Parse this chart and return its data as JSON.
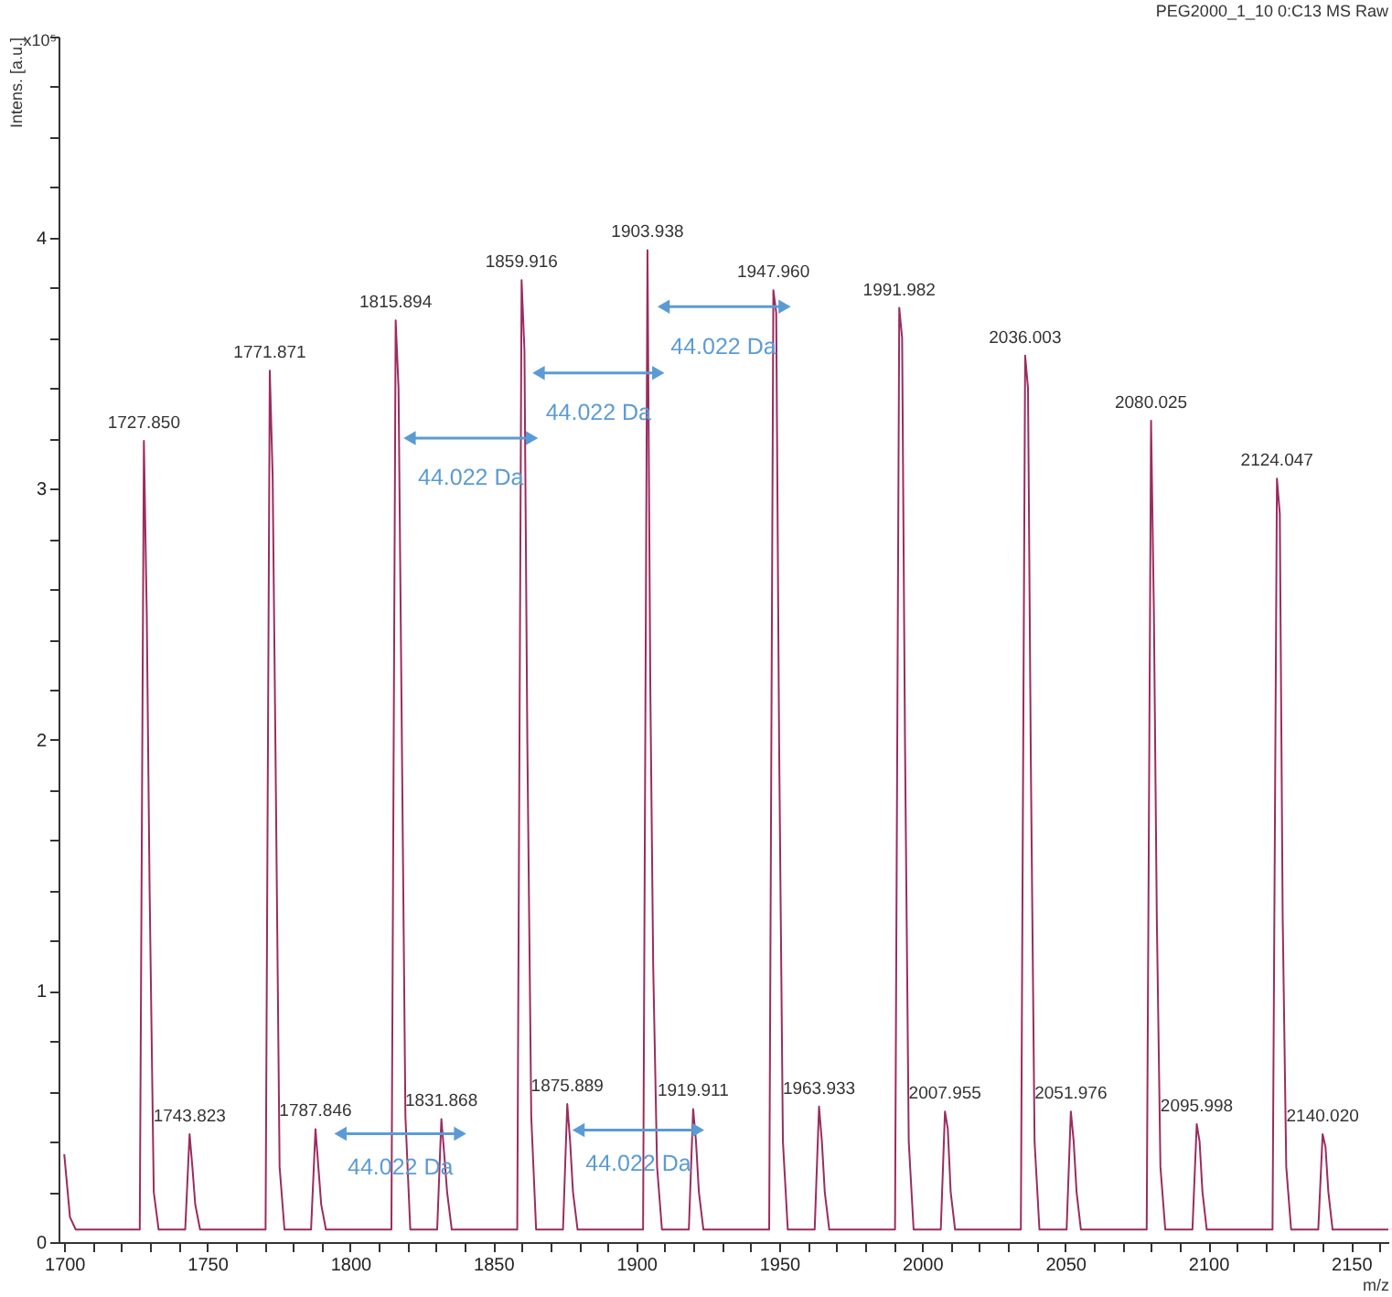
{
  "chart_data": {
    "type": "line",
    "title": "PEG2000_1_10 0:C13 MS Raw",
    "xlabel": "m/z",
    "ylabel": "Intens. [a.u.]",
    "xlim": [
      1698,
      2163
    ],
    "ylim": [
      0,
      4.8
    ],
    "xticks": [
      1700,
      {
        "value": 1710,
        "label": null
      },
      {
        "value": 1720,
        "label": null
      },
      {
        "value": 1730,
        "label": null
      },
      {
        "value": 1740,
        "label": null
      },
      1750,
      {
        "value": 1760,
        "label": null
      },
      {
        "value": 1770,
        "label": null
      },
      {
        "value": 1780,
        "label": null
      },
      {
        "value": 1790,
        "label": null
      },
      1800,
      {
        "value": 1810,
        "label": null
      },
      {
        "value": 1820,
        "label": null
      },
      {
        "value": 1830,
        "label": null
      },
      {
        "value": 1840,
        "label": null
      },
      1850,
      {
        "value": 1860,
        "label": null
      },
      {
        "value": 1870,
        "label": null
      },
      {
        "value": 1880,
        "label": null
      },
      {
        "value": 1890,
        "label": null
      },
      1900,
      {
        "value": 1910,
        "label": null
      },
      {
        "value": 1920,
        "label": null
      },
      {
        "value": 1930,
        "label": null
      },
      {
        "value": 1940,
        "label": null
      },
      1950,
      {
        "value": 1960,
        "label": null
      },
      {
        "value": 1970,
        "label": null
      },
      {
        "value": 1980,
        "label": null
      },
      {
        "value": 1990,
        "label": null
      },
      2000,
      {
        "value": 2010,
        "label": null
      },
      {
        "value": 2020,
        "label": null
      },
      {
        "value": 2030,
        "label": null
      },
      {
        "value": 2040,
        "label": null
      },
      2050,
      {
        "value": 2060,
        "label": null
      },
      {
        "value": 2070,
        "label": null
      },
      {
        "value": 2080,
        "label": null
      },
      {
        "value": 2090,
        "label": null
      },
      2100,
      {
        "value": 2110,
        "label": null
      },
      {
        "value": 2120,
        "label": null
      },
      {
        "value": 2130,
        "label": null
      },
      {
        "value": 2140,
        "label": null
      },
      2150,
      {
        "value": 2160,
        "label": null
      }
    ],
    "yticks": [
      0,
      {
        "value": 0.2,
        "label": null
      },
      {
        "value": 0.4,
        "label": null
      },
      {
        "value": 0.6,
        "label": null
      },
      {
        "value": 0.8,
        "label": null
      },
      1,
      {
        "value": 1.2,
        "label": null
      },
      {
        "value": 1.4,
        "label": null
      },
      {
        "value": 1.6,
        "label": null
      },
      {
        "value": 1.8,
        "label": null
      },
      2,
      {
        "value": 2.2,
        "label": null
      },
      {
        "value": 2.4,
        "label": null
      },
      {
        "value": 2.6,
        "label": null
      },
      {
        "value": 2.8,
        "label": null
      },
      3,
      {
        "value": 3.2,
        "label": null
      },
      {
        "value": 3.4,
        "label": null
      },
      {
        "value": 3.6,
        "label": null
      },
      {
        "value": 3.8,
        "label": null
      },
      4,
      {
        "value": 4.2,
        "label": null
      },
      {
        "value": 4.4,
        "label": null
      },
      {
        "value": 4.6,
        "label": null
      },
      {
        "value": 4.8,
        "label": null
      }
    ],
    "series": [
      {
        "color": "#9b2c5e",
        "x": [
          1700,
          1702,
          1704,
          1726.4,
          1727.85,
          1728.85,
          1729.85,
          1731.3,
          1733,
          1742.3,
          1743.82,
          1744.8,
          1745.8,
          1747.5,
          1770.4,
          1771.87,
          1772.87,
          1773.87,
          1775.3,
          1777,
          1786.3,
          1787.85,
          1788.85,
          1789.85,
          1791.5,
          1814.4,
          1815.89,
          1816.89,
          1817.89,
          1819.3,
          1821,
          1830.4,
          1831.87,
          1832.87,
          1833.87,
          1835.5,
          1858.4,
          1859.92,
          1860.92,
          1861.92,
          1863.3,
          1865,
          1874.4,
          1875.89,
          1876.89,
          1877.89,
          1879.5,
          1902.4,
          1903.94,
          1904.94,
          1905.94,
          1907.3,
          1909,
          1918.4,
          1919.91,
          1920.91,
          1921.91,
          1923.5,
          1946.5,
          1947.96,
          1948.96,
          1949.96,
          1951.3,
          1953,
          1962.4,
          1963.93,
          1964.93,
          1965.93,
          1967.5,
          1990.5,
          1991.98,
          1992.98,
          1993.98,
          1995.3,
          1997,
          2006.5,
          2007.96,
          2008.96,
          2009.96,
          2011.5,
          2034.5,
          2036.0,
          2037,
          2038,
          2039.3,
          2041,
          2050.5,
          2051.98,
          2052.98,
          2053.98,
          2055.5,
          2078.5,
          2080.03,
          2081.03,
          2082.03,
          2083.3,
          2085,
          2094.5,
          2096.0,
          2097,
          2098,
          2099.5,
          2122.5,
          2124.05,
          2125.05,
          2126.05,
          2127.3,
          2129,
          2138.5,
          2140.02,
          2141.02,
          2142.02,
          2143.5,
          2163
        ],
        "values": [
          0.35,
          0.1,
          0.05,
          0.05,
          3.19,
          2.5,
          1.4,
          0.2,
          0.05,
          0.05,
          0.43,
          0.3,
          0.15,
          0.05,
          0.05,
          3.47,
          3.05,
          1.95,
          0.3,
          0.05,
          0.05,
          0.45,
          0.3,
          0.15,
          0.05,
          0.05,
          3.67,
          3.4,
          2.2,
          0.5,
          0.05,
          0.05,
          0.49,
          0.35,
          0.2,
          0.05,
          0.05,
          3.83,
          3.55,
          2.0,
          0.5,
          0.05,
          0.05,
          0.55,
          0.4,
          0.2,
          0.05,
          0.05,
          3.95,
          2.2,
          1.1,
          0.3,
          0.05,
          0.05,
          0.53,
          0.4,
          0.2,
          0.05,
          0.05,
          3.79,
          3.7,
          2.0,
          0.4,
          0.05,
          0.05,
          0.54,
          0.4,
          0.2,
          0.05,
          0.05,
          3.72,
          3.6,
          2.0,
          0.4,
          0.05,
          0.05,
          0.52,
          0.45,
          0.2,
          0.05,
          0.05,
          3.53,
          3.4,
          1.9,
          0.4,
          0.05,
          0.05,
          0.52,
          0.4,
          0.2,
          0.05,
          0.05,
          3.27,
          2.5,
          1.3,
          0.3,
          0.05,
          0.05,
          0.47,
          0.4,
          0.2,
          0.05,
          0.05,
          3.04,
          2.9,
          1.3,
          0.3,
          0.05,
          0.05,
          0.43,
          0.38,
          0.2,
          0.05,
          0.05
        ]
      }
    ],
    "annotations": [
      "x10⁵",
      "44.022 Da",
      "44.022 Da",
      "44.022 Da",
      "44.022 Da",
      "44.022 Da",
      {
        "text": "1727.850",
        "x": 1727.85,
        "y": 3.19
      },
      {
        "text": "1743.823",
        "x": 1743.82,
        "y": 0.43
      },
      {
        "text": "1771.871",
        "x": 1771.87,
        "y": 3.47
      },
      {
        "text": "1787.846",
        "x": 1787.85,
        "y": 0.45
      },
      {
        "text": "1815.894",
        "x": 1815.89,
        "y": 3.67
      },
      {
        "text": "1831.868",
        "x": 1831.87,
        "y": 0.49
      },
      {
        "text": "1859.916",
        "x": 1859.92,
        "y": 3.83
      },
      {
        "text": "1875.889",
        "x": 1875.89,
        "y": 0.55
      },
      {
        "text": "1903.938",
        "x": 1903.94,
        "y": 3.95
      },
      {
        "text": "1919.911",
        "x": 1919.91,
        "y": 0.53
      },
      {
        "text": "1947.960",
        "x": 1947.96,
        "y": 3.79
      },
      {
        "text": "1963.933",
        "x": 1963.93,
        "y": 0.54
      },
      {
        "text": "1991.982",
        "x": 1991.98,
        "y": 3.72
      },
      {
        "text": "2007.955",
        "x": 2007.96,
        "y": 0.52
      },
      {
        "text": "2036.003",
        "x": 2036.0,
        "y": 3.53
      },
      {
        "text": "2051.976",
        "x": 2051.98,
        "y": 0.52
      },
      {
        "text": "2080.025",
        "x": 2080.03,
        "y": 3.27
      },
      {
        "text": "2095.998",
        "x": 2096.0,
        "y": 0.47
      },
      {
        "text": "2124.047",
        "x": 2124.05,
        "y": 3.04
      },
      {
        "text": "2140.020",
        "x": 2140.02,
        "y": 0.43
      }
    ]
  }
}
